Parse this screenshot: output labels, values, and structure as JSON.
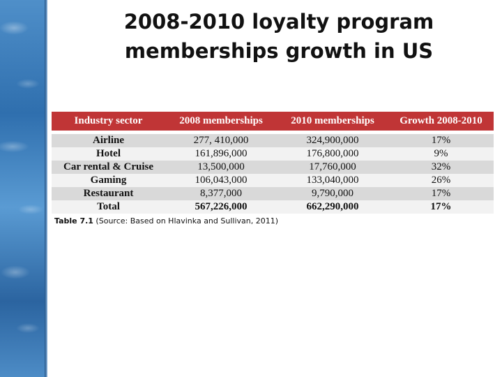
{
  "slide": {
    "title_line1": "2008-2010 loyalty program",
    "title_line2": "memberships growth in US"
  },
  "table": {
    "headers": [
      "Industry sector",
      "2008 memberships",
      "2010 memberships",
      "Growth 2008-2010"
    ],
    "rows": [
      [
        "Airline",
        "277, 410,000",
        "324,900,000",
        "17%"
      ],
      [
        "Hotel",
        "161,896,000",
        "176,800,000",
        "9%"
      ],
      [
        "Car rental & Cruise",
        "13,500,000",
        "17,760,000",
        "32%"
      ],
      [
        "Gaming",
        "106,043,000",
        "133,040,000",
        "26%"
      ],
      [
        "Restaurant",
        "8,377,000",
        "9,790,000",
        "17%"
      ],
      [
        "Total",
        "567,226,000",
        "662,290,000",
        "17%"
      ]
    ]
  },
  "caption": {
    "label": "Table 7.1",
    "text": " (Source: Based on Hlavinka and Sullivan, 2011)"
  },
  "colors": {
    "header_bg": "#c03536",
    "row_odd": "#d9d9d9",
    "row_even": "#f2f2f2",
    "side_strip": "#3a78b5"
  }
}
